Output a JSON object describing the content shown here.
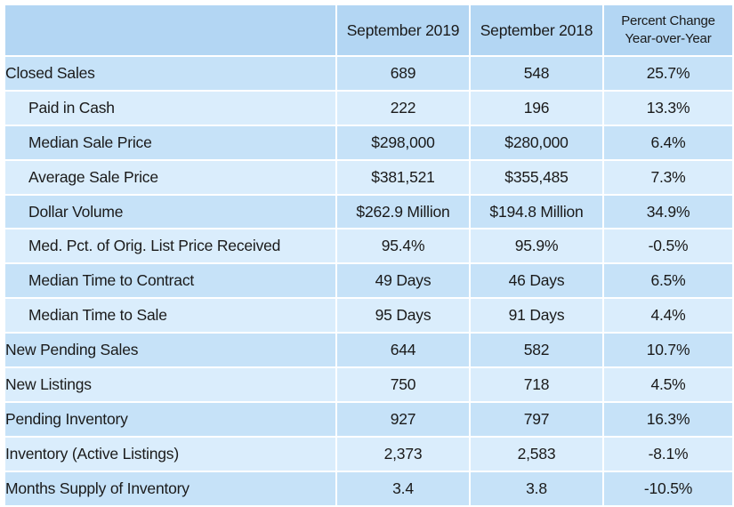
{
  "header": {
    "col_2019": "September 2019",
    "col_2018": "September 2018",
    "col_change_line1": "Percent Change",
    "col_change_line2": "Year-over-Year"
  },
  "rows": [
    {
      "label": "Closed Sales",
      "indent": false,
      "sep_2019": "689",
      "sep_2018": "548",
      "change": "25.7%"
    },
    {
      "label": "Paid in Cash",
      "indent": true,
      "sep_2019": "222",
      "sep_2018": "196",
      "change": "13.3%"
    },
    {
      "label": "Median Sale Price",
      "indent": true,
      "sep_2019": "$298,000",
      "sep_2018": "$280,000",
      "change": "6.4%"
    },
    {
      "label": "Average Sale Price",
      "indent": true,
      "sep_2019": "$381,521",
      "sep_2018": "$355,485",
      "change": "7.3%"
    },
    {
      "label": "Dollar Volume",
      "indent": true,
      "sep_2019": "$262.9 Million",
      "sep_2018": "$194.8 Million",
      "change": "34.9%"
    },
    {
      "label": "Med. Pct. of Orig. List Price Received",
      "indent": true,
      "sep_2019": "95.4%",
      "sep_2018": "95.9%",
      "change": "-0.5%"
    },
    {
      "label": "Median Time to Contract",
      "indent": true,
      "sep_2019": "49 Days",
      "sep_2018": "46 Days",
      "change": "6.5%"
    },
    {
      "label": "Median Time to Sale",
      "indent": true,
      "sep_2019": "95 Days",
      "sep_2018": "91 Days",
      "change": "4.4%"
    },
    {
      "label": "New Pending Sales",
      "indent": false,
      "sep_2019": "644",
      "sep_2018": "582",
      "change": "10.7%"
    },
    {
      "label": "New Listings",
      "indent": false,
      "sep_2019": "750",
      "sep_2018": "718",
      "change": "4.5%"
    },
    {
      "label": "Pending Inventory",
      "indent": false,
      "sep_2019": "927",
      "sep_2018": "797",
      "change": "16.3%"
    },
    {
      "label": "Inventory (Active Listings)",
      "indent": false,
      "sep_2019": "2,373",
      "sep_2018": "2,583",
      "change": "-8.1%"
    },
    {
      "label": "Months Supply of Inventory",
      "indent": false,
      "sep_2019": "3.4",
      "sep_2018": "3.8",
      "change": "-10.5%"
    }
  ],
  "colors": {
    "header_bg": "#b3d6f3",
    "row_odd_bg": "#c6e2f8",
    "row_even_bg": "#daedfc",
    "grid": "#ffffff"
  }
}
